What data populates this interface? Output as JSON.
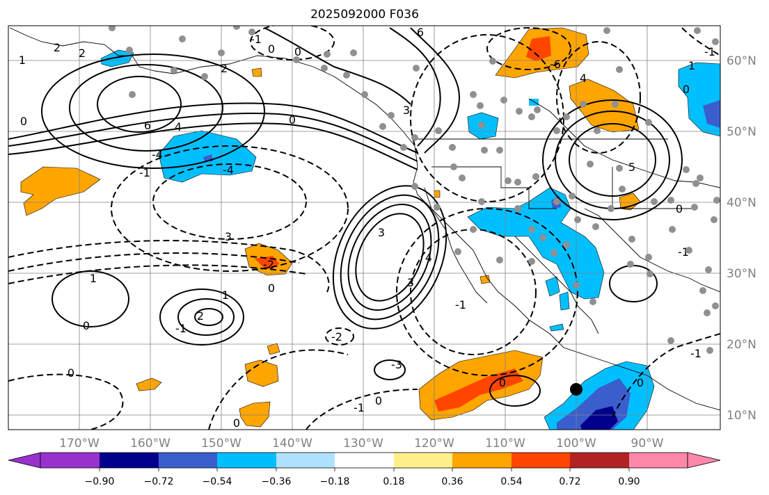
{
  "title": "2025092000 F036",
  "map": {
    "lon_labels": [
      "170°W",
      "160°W",
      "150°W",
      "140°W",
      "130°W",
      "120°W",
      "110°W",
      "100°W",
      "90°W"
    ],
    "lat_labels": [
      "60°N",
      "50°N",
      "40°N",
      "30°N",
      "20°N",
      "10°N"
    ],
    "contour_labels": [
      "2",
      "1",
      "2",
      "0",
      "6",
      "2",
      "0",
      "-1",
      "3",
      "3",
      "-6",
      "-1",
      "0",
      "4",
      "-4",
      "6",
      "4",
      "0",
      "4",
      "-4",
      "1",
      "5",
      "0",
      "3",
      "3",
      "-1",
      "0",
      "-2",
      "2",
      "1",
      "0",
      "-1",
      "1",
      "-1",
      "-2",
      "0",
      "-3",
      "0",
      "0",
      "-1",
      "0",
      "0",
      "0",
      "-1",
      "-1"
    ]
  },
  "colorbar": {
    "ticks": [
      "−0.90",
      "−0.72",
      "−0.54",
      "−0.36",
      "−0.18",
      "0.18",
      "0.36",
      "0.54",
      "0.72",
      "0.90"
    ],
    "colors": [
      "#9932cc",
      "#00008b",
      "#3a5fcd",
      "#00bfff",
      "#b0e2ff",
      "#ffffff",
      "#fff08c",
      "#ffa500",
      "#ff4500",
      "#b22222",
      "#ff88aa"
    ]
  }
}
